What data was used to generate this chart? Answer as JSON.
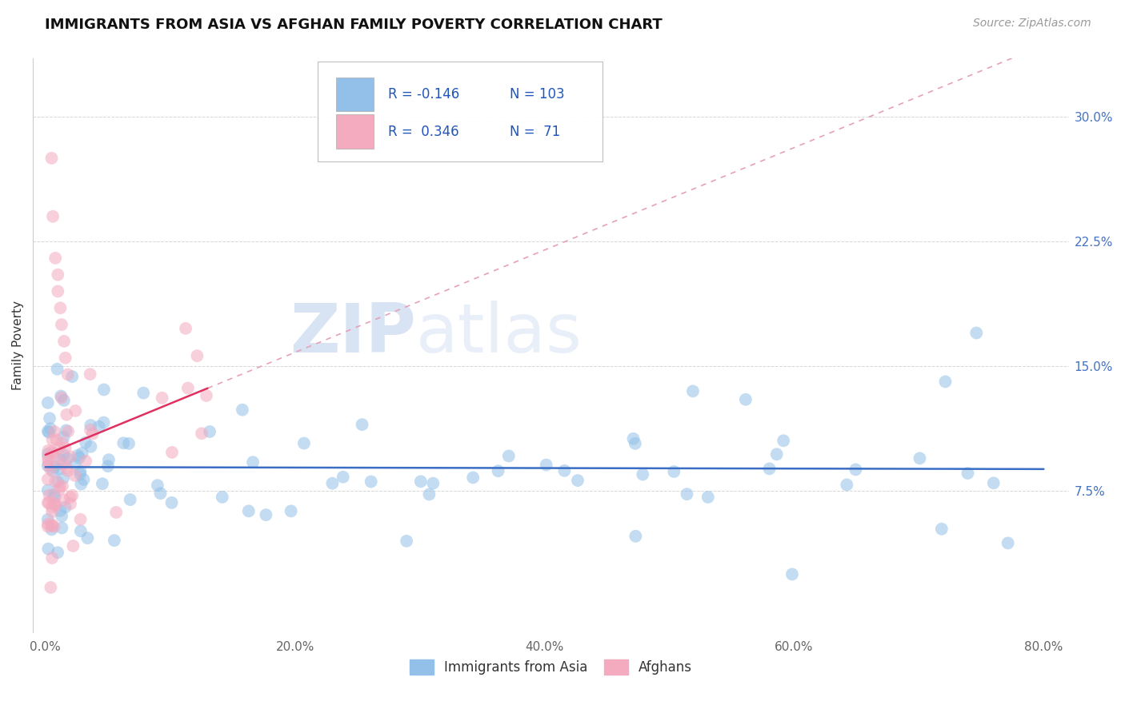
{
  "title": "IMMIGRANTS FROM ASIA VS AFGHAN FAMILY POVERTY CORRELATION CHART",
  "source": "Source: ZipAtlas.com",
  "ylabel": "Family Poverty",
  "x_tick_labels": [
    "0.0%",
    "20.0%",
    "40.0%",
    "60.0%",
    "80.0%"
  ],
  "x_tick_positions": [
    0.0,
    0.2,
    0.4,
    0.6,
    0.8
  ],
  "y_tick_labels": [
    "7.5%",
    "15.0%",
    "22.5%",
    "30.0%"
  ],
  "y_tick_positions": [
    0.075,
    0.15,
    0.225,
    0.3
  ],
  "xlim": [
    -0.01,
    0.82
  ],
  "ylim": [
    -0.01,
    0.335
  ],
  "legend_color1": "#92C0E8",
  "legend_color2": "#F4AABF",
  "dot_color_asia": "#92C0E8",
  "dot_color_afghan": "#F4AABF",
  "line_color_asia": "#3A6EC4",
  "line_color_afghan": "#E03060",
  "line_color_afghan_dash": "#E8A0B8",
  "watermark_zip": "ZIP",
  "watermark_atlas": "atlas",
  "bottom_labels": [
    "Immigrants from Asia",
    "Afghans"
  ],
  "title_fontsize": 13,
  "axis_label_fontsize": 11,
  "tick_fontsize": 11,
  "source_fontsize": 10,
  "legend_r1": "R = -0.146",
  "legend_n1": "N = 103",
  "legend_r2": "R =  0.346",
  "legend_n2": "N =  71"
}
